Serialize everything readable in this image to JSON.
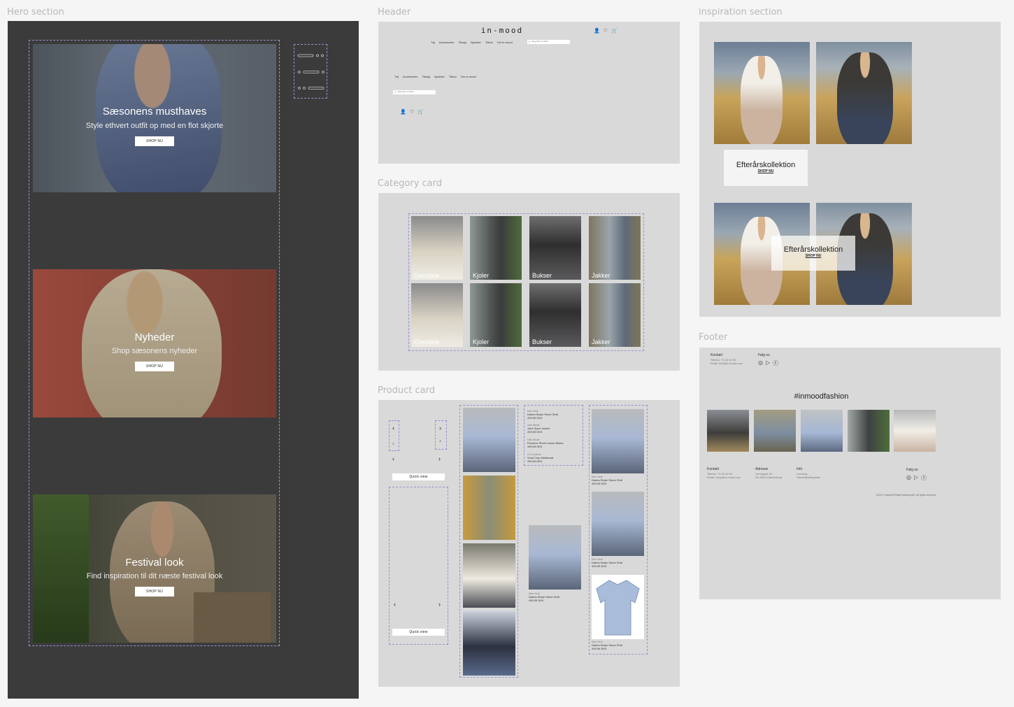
{
  "sections": {
    "hero": "Hero section",
    "header": "Header",
    "category": "Category card",
    "product": "Product card",
    "inspiration": "inspiration section",
    "footer": "Footer"
  },
  "hero": {
    "slides": [
      {
        "title": "Sæsonens musthaves",
        "subtitle": "Style ethvert outfit op med en flot skjorte",
        "button": "SHOP NU"
      },
      {
        "title": "Nyheder",
        "subtitle": "Shop sæsonens nyheder",
        "button": "SHOP NU"
      },
      {
        "title": "Festival look",
        "subtitle": "Find inspiration til dit næste festival look",
        "button": "SHOP NU"
      }
    ]
  },
  "header": {
    "logo": "in-mood",
    "nav": [
      "Tøj",
      "Accessories",
      "Tilsalg",
      "Nyheder",
      "Tilbud",
      "Om in-mood"
    ],
    "search_placeholder": "Søg efter produkt",
    "nav_mobile": [
      "Tøj",
      "Accessories",
      "Tilsalg",
      "Nyheder",
      "Tilbud",
      "Om in-mood"
    ],
    "search_placeholder_mobile": "Søg efter produkt"
  },
  "categories": {
    "row1": [
      "Overdele",
      "Kjoler",
      "Bukser",
      "Jakker"
    ],
    "row2": [
      "Overdele",
      "Kjoler",
      "Bukser",
      "Jakker"
    ]
  },
  "product": {
    "quickview": "Quick view",
    "list": [
      {
        "brand": "Neo Noir",
        "name": "Dalma Stripe Stone Shirt",
        "price": "499,95 DKK"
      },
      {
        "brand": "Vila Mode",
        "name": "Jane Spon Jacket",
        "price": "499,95 DKK"
      },
      {
        "brand": "Vila Mode",
        "name": "Florence Short Linnen Blazer",
        "price": "499,95 DKK"
      },
      {
        "brand": "Co'Couture",
        "name": "Viola Crop Waistcoat",
        "price": "399,95 DKK"
      }
    ],
    "card": {
      "brand": "Neo Noir",
      "name": "Dalma Stripe Stone Shirt",
      "price": "499,95 DKK"
    },
    "card2": {
      "brand": "Neo Noir",
      "name": "Dalma Stripe Stone Shirt",
      "price": "499,95 DKK"
    },
    "card3": {
      "brand": "Neo Noir",
      "name": "Dalma Stripe Stone Shirt",
      "price": "499,95 DKK"
    },
    "card4": {
      "brand": "Neo Noir",
      "name": "Dalma Stripe Stone Shirt",
      "price": "499,95 DKK"
    }
  },
  "inspiration": {
    "title": "Efterårskollektion",
    "cta": "SHOP NU",
    "title2": "Efterårskollektion",
    "cta2": "SHOP NU"
  },
  "footer": {
    "top_contact_title": "Kontakt",
    "top_phone": "Telefon: 73 42 44 00",
    "top_email": "Email: info@in-mood.com",
    "top_follow": "Følg os",
    "hashtag": "#inmoodfashion",
    "contact_title": "Kontakt",
    "phone": "Telefon: 73 42 44 00",
    "email": "Email: shop@in-mood.com",
    "address_title": "Adresse",
    "street": "Torvegade 16",
    "city": "DK-6400 Sønderborg",
    "info_title": "Info",
    "info1": "Levering",
    "info2": "Handelsbetingelser",
    "follow": "Følg os",
    "copyright": "2016 © Humbolt Retail Holding ApS. All rights reserved"
  },
  "colors": {
    "hero_bg": "#3b3b3b",
    "frame_bg": "#d9d9d9",
    "page_bg": "#f5f5f5",
    "accent_dash": "#9b8fd0"
  }
}
